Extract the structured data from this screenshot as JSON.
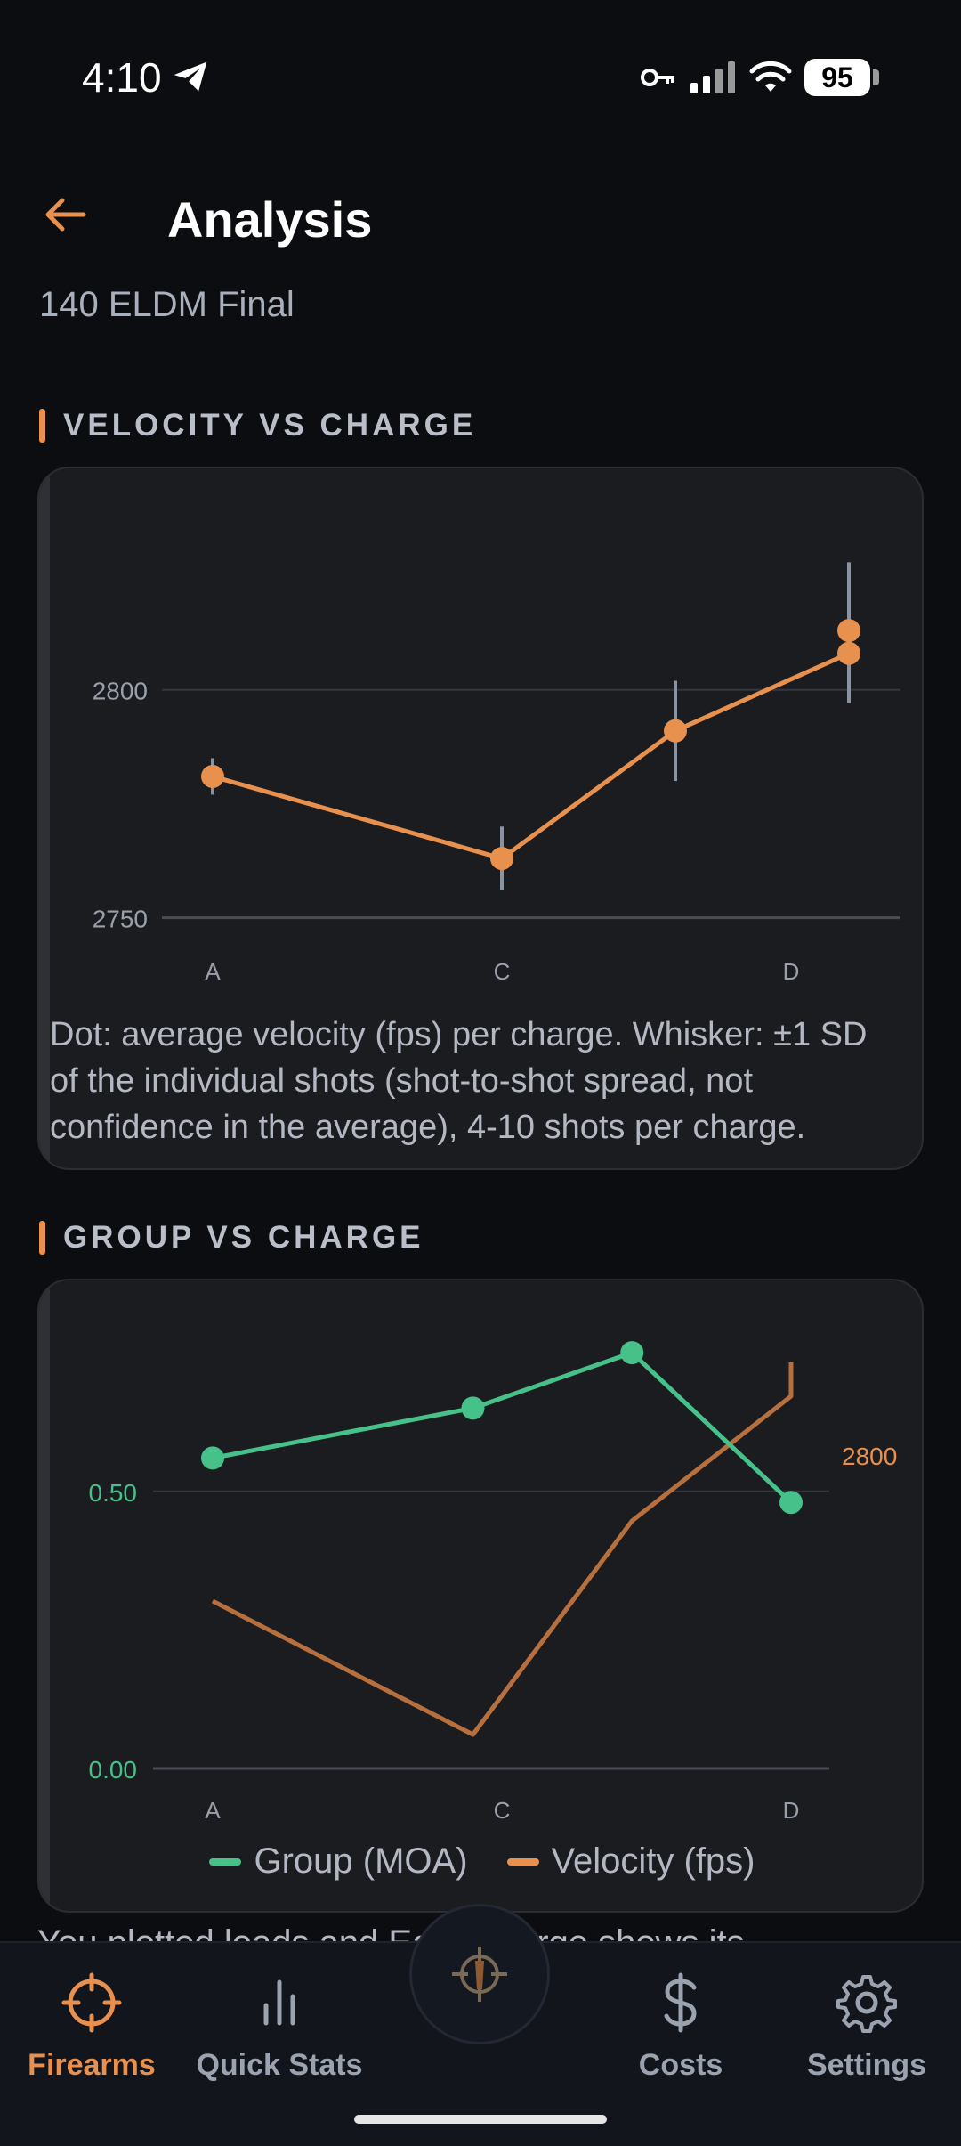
{
  "status": {
    "time": "4:10",
    "battery": "95"
  },
  "header": {
    "title": "Analysis",
    "subtitle": "140 ELDM Final"
  },
  "sections": {
    "velocity": {
      "title": "VELOCITY VS CHARGE",
      "caption": "Dot: average velocity (fps) per charge. Whisker: ±1 SD of the individual shots (shot-to-shot spread, not confidence in the average), 4-10 shots per charge."
    },
    "group": {
      "title": "GROUP VS CHARGE",
      "legend_group": "Group (MOA)",
      "legend_velocity": "Velocity (fps)"
    }
  },
  "peek_text": "You plotted loads and Each charge shows its",
  "nav": {
    "firearms": "Firearms",
    "quick_stats": "Quick Stats",
    "costs": "Costs",
    "settings": "Settings"
  },
  "colors": {
    "accent": "#e8904d",
    "green": "#46c18a",
    "velocity_line": "#b86f3e",
    "whisker": "#8a93a2"
  },
  "chart_data": [
    {
      "type": "line",
      "title": "VELOCITY VS CHARGE",
      "categories": [
        "A",
        "C",
        "D"
      ],
      "x_tick_labels": [
        "A",
        "C",
        "D"
      ],
      "yticks": [
        2750,
        2800
      ],
      "ylim": [
        2747,
        2831
      ],
      "points": [
        {
          "x": 0.0,
          "mean": 2781,
          "sd": 4
        },
        {
          "x": 1.0,
          "mean": 2763,
          "sd": 7
        },
        {
          "x": 1.6,
          "mean": 2791,
          "sd": 11
        },
        {
          "x": 2.2,
          "mean": 2808,
          "sd": 11
        },
        {
          "x": 2.2,
          "mean": 2813,
          "sd": 15
        }
      ],
      "grid": true
    },
    {
      "type": "line",
      "title": "GROUP VS CHARGE",
      "categories": [
        "A",
        "C",
        "D"
      ],
      "x_tick_labels": [
        "A",
        "C",
        "D"
      ],
      "y_left_ticks": [
        "0.00",
        "0.50"
      ],
      "y_left_lim": [
        0,
        0.8
      ],
      "y_right_ticks": [
        "2800"
      ],
      "series": [
        {
          "name": "Group (MOA)",
          "points": [
            {
              "x": 0.0,
              "y": 0.56
            },
            {
              "x": 0.9,
              "y": 0.65
            },
            {
              "x": 1.45,
              "y": 0.75
            },
            {
              "x": 2.0,
              "y": 0.48
            }
          ]
        },
        {
          "name": "Velocity (fps)",
          "points": [
            {
              "x": 0.0,
              "y": 2781
            },
            {
              "x": 0.9,
              "y": 2763
            },
            {
              "x": 1.45,
              "y": 2791
            },
            {
              "x": 2.0,
              "y": 2808
            },
            {
              "x": 2.0,
              "y": 2813
            }
          ]
        }
      ],
      "legend": "bottom",
      "grid": true
    }
  ]
}
